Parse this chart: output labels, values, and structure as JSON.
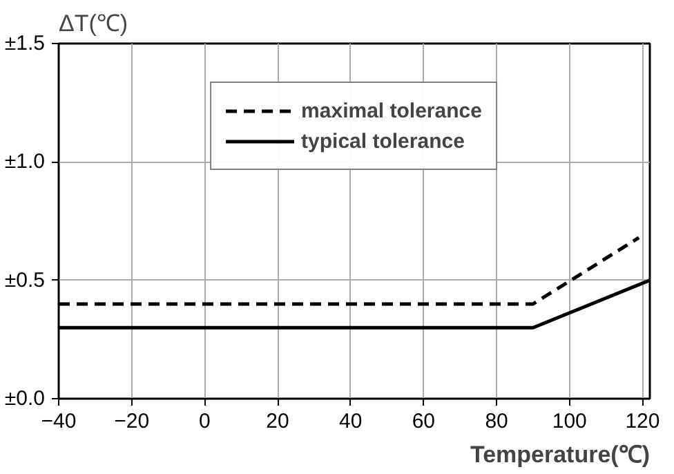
{
  "chart_data": {
    "type": "line",
    "xlabel": "Temperature(℃)",
    "ylabel": "ΔT(℃)",
    "xlim": [
      -40,
      122
    ],
    "xticks": [
      -40,
      -20,
      0,
      20,
      40,
      60,
      80,
      100,
      120
    ],
    "ylim": [
      0,
      1.5
    ],
    "yticks": [
      {
        "value": 0,
        "label": "±0.0"
      },
      {
        "value": 0.5,
        "label": "±0.5"
      },
      {
        "value": 1.0,
        "label": "±1.0"
      },
      {
        "value": 1.5,
        "label": "±1.5"
      }
    ],
    "series": [
      {
        "name": "maximal tolerance",
        "color": "#000000",
        "line_style": "dashed",
        "x": [
          -40,
          90,
          119
        ],
        "values": [
          0.4,
          0.4,
          0.68
        ]
      },
      {
        "name": "typical tolerance",
        "color": "#000000",
        "line_style": "solid",
        "x": [
          -40,
          90,
          122
        ],
        "values": [
          0.3,
          0.3,
          0.5
        ]
      }
    ],
    "grid": true,
    "legend": "top",
    "marker": "none"
  }
}
